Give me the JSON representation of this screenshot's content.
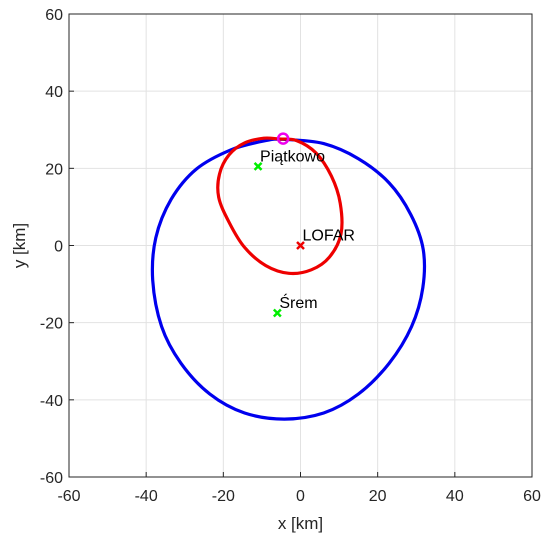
{
  "chart_data": {
    "type": "scatter",
    "xlabel": "x [km]",
    "ylabel": "y [km]",
    "xlim": [
      -60,
      60
    ],
    "ylim": [
      -60,
      60
    ],
    "xticks": [
      -60,
      -40,
      -20,
      0,
      20,
      40,
      60
    ],
    "yticks": [
      -60,
      -40,
      -20,
      0,
      20,
      40,
      60
    ],
    "grid": true,
    "colors": {
      "blue_curve": "#0000ee",
      "red_curve": "#ee0000",
      "site_marker": "#00ee00",
      "lofar_marker": "#ee0000",
      "circle_marker": "#ee00ee"
    },
    "curves": [
      {
        "color_key": "blue_curve",
        "points": [
          [
            -4.2,
            27.5
          ],
          [
            6,
            26.4
          ],
          [
            15,
            22.5
          ],
          [
            23,
            16.2
          ],
          [
            28.6,
            8
          ],
          [
            31.8,
            -1
          ],
          [
            31.7,
            -11
          ],
          [
            28.8,
            -21
          ],
          [
            23,
            -30.5
          ],
          [
            15,
            -38.5
          ],
          [
            6,
            -43.4
          ],
          [
            -4.2,
            -45
          ],
          [
            -14.5,
            -43.4
          ],
          [
            -23.5,
            -38.5
          ],
          [
            -31,
            -30.5
          ],
          [
            -36,
            -21
          ],
          [
            -38.3,
            -9
          ],
          [
            -37.5,
            2
          ],
          [
            -33.5,
            12
          ],
          [
            -27,
            19.8
          ],
          [
            -18,
            24.8
          ],
          [
            -9,
            27.2
          ],
          [
            -4.2,
            27.5
          ]
        ]
      },
      {
        "color_key": "red_curve",
        "points": [
          [
            -5.5,
            27.6
          ],
          [
            -1,
            27.2
          ],
          [
            4,
            24
          ],
          [
            8,
            18
          ],
          [
            10.3,
            11
          ],
          [
            10.5,
            3
          ],
          [
            7.5,
            -3
          ],
          [
            2.8,
            -6.3
          ],
          [
            -3,
            -7.2
          ],
          [
            -9,
            -5.2
          ],
          [
            -14.5,
            -0.5
          ],
          [
            -18.5,
            6
          ],
          [
            -21.2,
            12.5
          ],
          [
            -21,
            18.5
          ],
          [
            -18.5,
            23.5
          ],
          [
            -14.5,
            26.6
          ],
          [
            -9.5,
            27.8
          ],
          [
            -5.5,
            27.6
          ]
        ]
      }
    ],
    "markers": [
      {
        "label": "Piątkowo",
        "x": -11,
        "y": 20.5,
        "color_key": "site_marker"
      },
      {
        "label": "LOFAR",
        "x": 0,
        "y": 0,
        "color_key": "lofar_marker"
      },
      {
        "label": "Śrem",
        "x": -6,
        "y": -17.5,
        "color_key": "site_marker"
      }
    ],
    "special_point": {
      "x": -4.5,
      "y": 27.7,
      "color_key": "circle_marker"
    }
  }
}
